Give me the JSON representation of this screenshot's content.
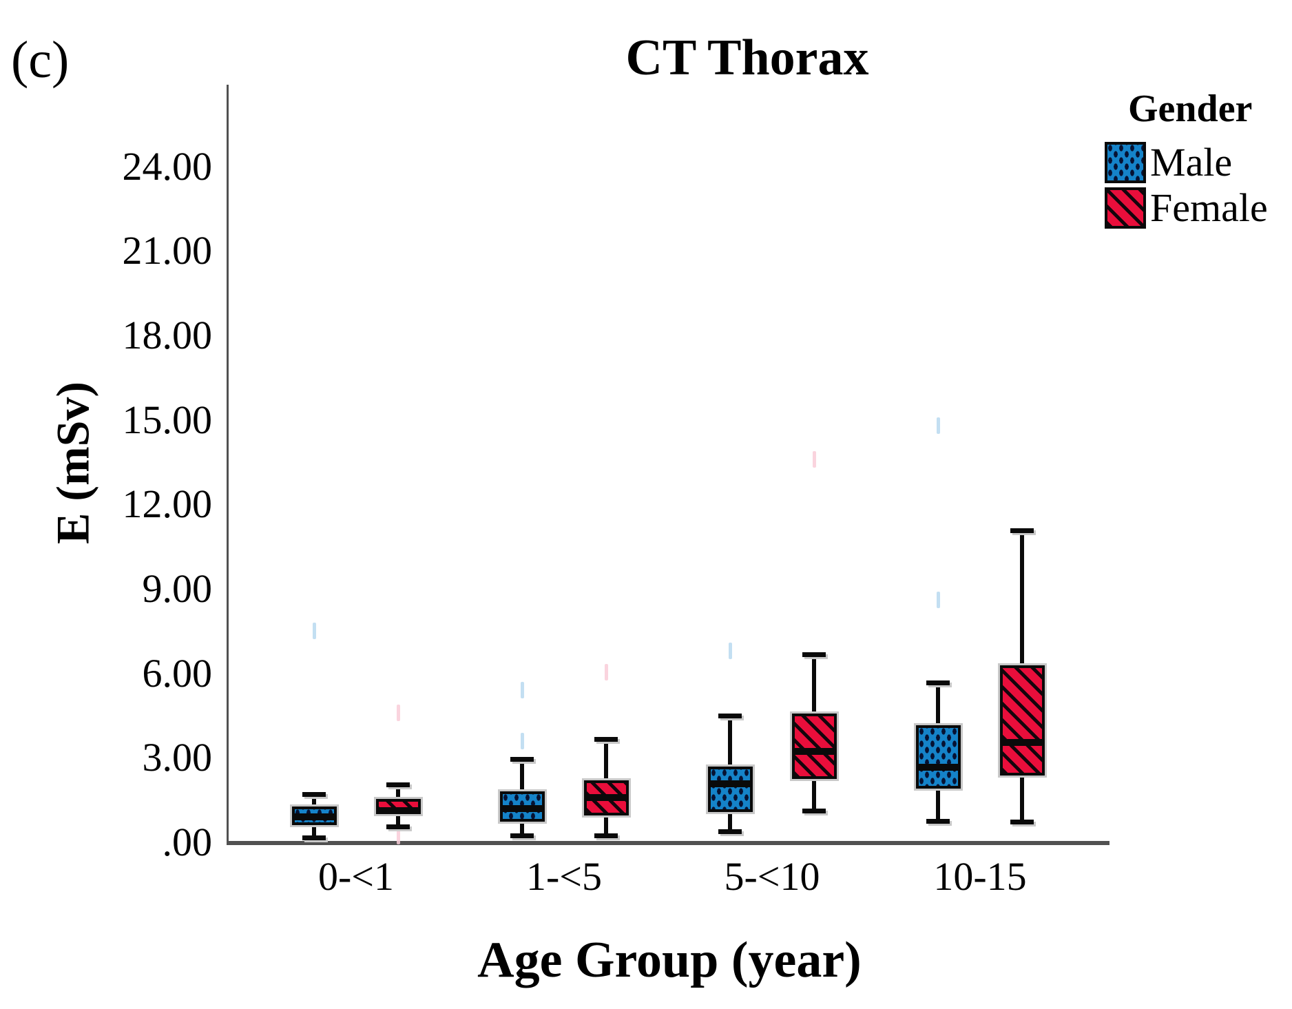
{
  "panel_label": "(c)",
  "title": "CT Thorax",
  "y_axis_title": "E (mSv)",
  "x_axis_title": "Age Group (year)",
  "legend": {
    "title": "Gender",
    "items": [
      {
        "label": "Male"
      },
      {
        "label": "Female"
      }
    ]
  },
  "chart_data": {
    "type": "boxplot",
    "title": "CT Thorax",
    "xlabel": "Age Group (year)",
    "ylabel": "E (mSv)",
    "grid": false,
    "legend_position": "top-right",
    "categories": [
      "0-<1",
      "1-<5",
      "5-<10",
      "10-15"
    ],
    "ylim": [
      0,
      26.9
    ],
    "y_ticks": [
      {
        "value": 0,
        "label": ".00"
      },
      {
        "value": 3,
        "label": "3.00"
      },
      {
        "value": 6,
        "label": "6.00"
      },
      {
        "value": 9,
        "label": "9.00"
      },
      {
        "value": 12,
        "label": "12.00"
      },
      {
        "value": 15,
        "label": "15.00"
      },
      {
        "value": 18,
        "label": "18.00"
      },
      {
        "value": 21,
        "label": "21.00"
      },
      {
        "value": 24,
        "label": "24.00"
      }
    ],
    "series": [
      {
        "name": "Male",
        "fill": "#1583c9",
        "pattern": "dots",
        "faint_color": "#b9d9f0",
        "boxes": [
          {
            "category": "0-<1",
            "whisker_low": 0.15,
            "q1": 0.62,
            "median": 0.9,
            "q3": 1.27,
            "whisker_high": 1.72,
            "faint_points": [
              7.5
            ]
          },
          {
            "category": "1-<5",
            "whisker_low": 0.22,
            "q1": 0.73,
            "median": 1.2,
            "q3": 1.81,
            "whisker_high": 2.95,
            "faint_points": [
              5.4,
              3.6
            ]
          },
          {
            "category": "5-<10",
            "whisker_low": 0.37,
            "q1": 1.08,
            "median": 2.08,
            "q3": 2.69,
            "whisker_high": 4.5,
            "faint_points": [
              6.8
            ]
          },
          {
            "category": "10-15",
            "whisker_low": 0.73,
            "q1": 1.9,
            "median": 2.66,
            "q3": 4.15,
            "whisker_high": 5.67,
            "faint_points": [
              14.8,
              8.6
            ]
          }
        ]
      },
      {
        "name": "Female",
        "fill": "#e90e3b",
        "pattern": "stripes",
        "faint_color": "#f9cdd8",
        "boxes": [
          {
            "category": "0-<1",
            "whisker_low": 0.55,
            "q1": 1.0,
            "median": 1.13,
            "q3": 1.55,
            "whisker_high": 2.05,
            "faint_points": [
              4.6,
              0.22
            ]
          },
          {
            "category": "1-<5",
            "whisker_low": 0.22,
            "q1": 0.95,
            "median": 1.6,
            "q3": 2.2,
            "whisker_high": 3.67,
            "faint_points": [
              6.05
            ]
          },
          {
            "category": "5-<10",
            "whisker_low": 1.1,
            "q1": 2.25,
            "median": 3.22,
            "q3": 4.57,
            "whisker_high": 6.67,
            "faint_points": [
              13.6
            ]
          },
          {
            "category": "10-15",
            "whisker_low": 0.71,
            "q1": 2.37,
            "median": 3.54,
            "q3": 6.28,
            "whisker_high": 11.07,
            "faint_points": []
          }
        ]
      }
    ]
  }
}
